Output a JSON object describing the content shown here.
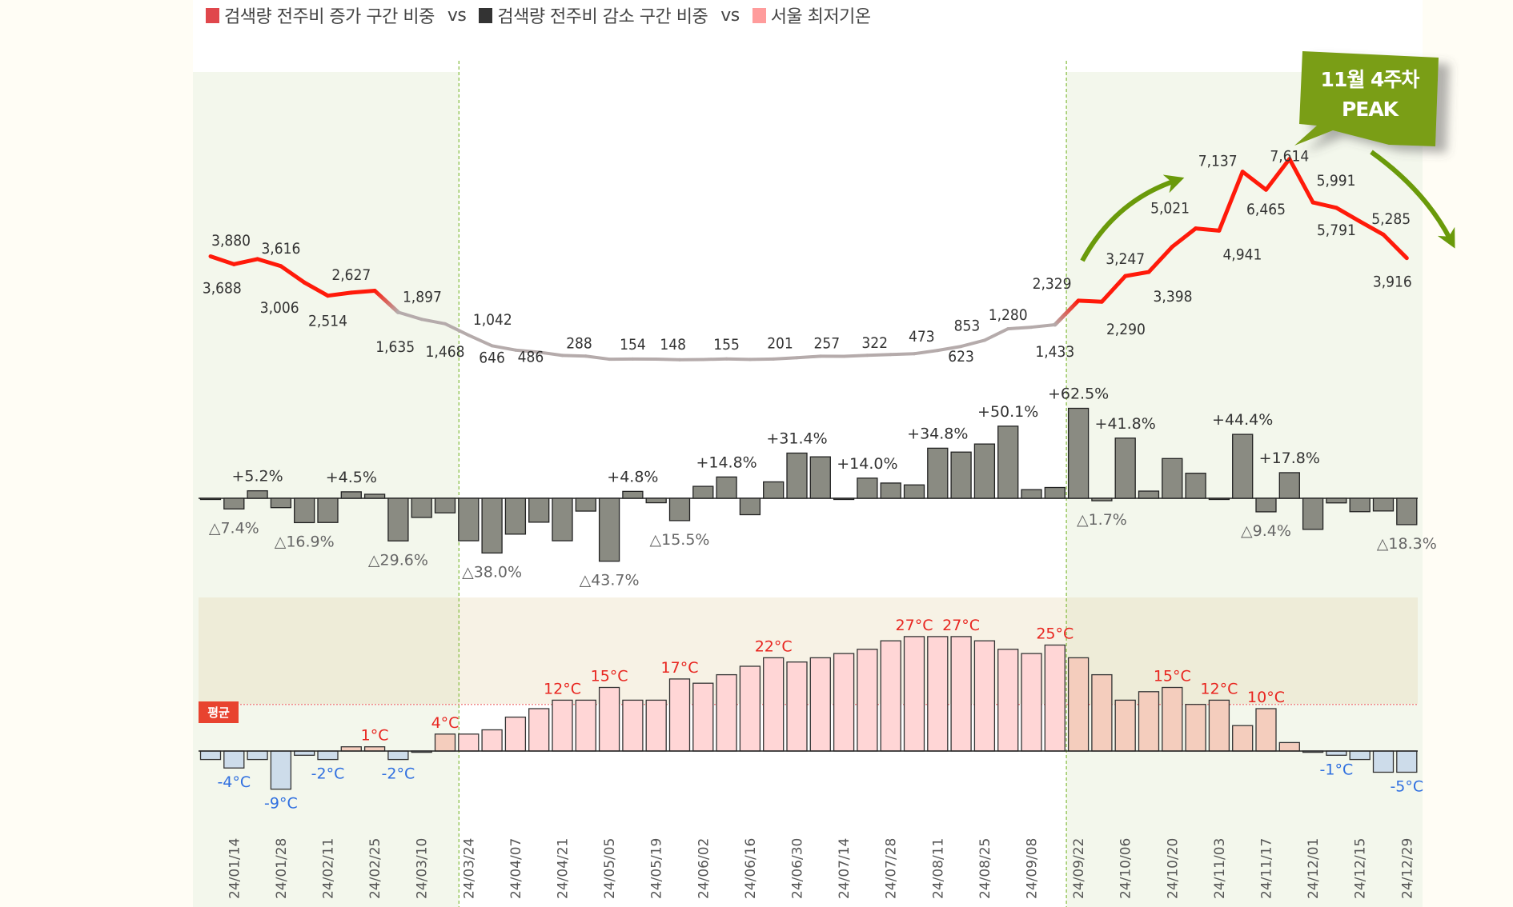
{
  "legend": {
    "separator": "vs",
    "items": [
      {
        "label": "검색량 전주비 증가 구간 비중",
        "color": "#e0474c"
      },
      {
        "label": "검색량 전주비 감소 구간 비중",
        "color": "#333333"
      },
      {
        "label": "서울 최저기온",
        "color": "#ff9c9c"
      }
    ]
  },
  "callout": {
    "line1": "11월 4주차",
    "line2": "PEAK",
    "color": "#7a9e14"
  },
  "average_badge": {
    "label": "평균",
    "color": "#e8432f"
  },
  "colors": {
    "increase_line": "#ff1a0a",
    "normal_line": "#b5abab",
    "wow_bar": "#8a8b82",
    "temp_positive": "#ffd6d6",
    "temp_negative": "#cddcea",
    "temp_label_positive": "#e8251f",
    "temp_label_negative": "#2f6fe0",
    "shaded_period": "#f3f7ec",
    "trend_arrow": "#6a9a0a"
  },
  "x_axis": {
    "tick_labels": [
      "24/01/14",
      "24/01/28",
      "24/02/11",
      "24/02/25",
      "24/03/10",
      "24/03/24",
      "24/04/07",
      "24/04/21",
      "24/05/05",
      "24/05/19",
      "24/06/02",
      "24/06/16",
      "24/06/30",
      "24/07/14",
      "24/07/28",
      "24/08/11",
      "24/08/25",
      "24/09/08",
      "24/09/22",
      "24/10/06",
      "24/10/20",
      "24/11/03",
      "24/11/17",
      "24/12/01",
      "24/12/15",
      "24/12/29"
    ],
    "shaded_periods": [
      {
        "end": "24/03/24"
      },
      {
        "start": "24/09/22"
      }
    ]
  },
  "chart_data": [
    {
      "type": "line",
      "values": [
        3983,
        3688,
        3880,
        3616,
        3006,
        2514,
        2627,
        2700,
        1897,
        1635,
        1468,
        1042,
        646,
        486,
        408,
        288,
        262,
        147,
        154,
        148,
        125,
        136,
        155,
        138,
        154,
        201,
        257,
        255,
        291,
        322,
        351,
        473,
        623,
        853,
        1280,
        1340,
        1433,
        2329,
        2290,
        3247,
        3398,
        4337,
        5021,
        4941,
        7137,
        6465,
        7614,
        5991,
        5791,
        5285,
        4793,
        3916
      ],
      "labels": [
        "",
        "3,688",
        "3,880",
        "3,616",
        "3,006",
        "2,514",
        "2,627",
        "",
        "1,897",
        "1,635",
        "1,468",
        "1,042",
        "646",
        "486",
        "",
        "288",
        "",
        "",
        "154",
        "148",
        "",
        "",
        "155",
        "",
        "",
        "201",
        "257",
        "",
        "",
        "322",
        "",
        "473",
        "623",
        "853",
        "1,280",
        "",
        "1,433",
        "2,329",
        "2,290",
        "3,247",
        "3,398",
        "",
        "5,021",
        "4,941",
        "7,137",
        "6,465",
        "7,614",
        "5,991",
        "5,791",
        "5,285",
        "",
        "3,916"
      ]
    },
    {
      "type": "bar",
      "values": [
        -0.5,
        -7.4,
        5.2,
        -6.5,
        -16.9,
        -16.8,
        4.5,
        2.8,
        -29.6,
        -13.3,
        -10.1,
        -29.5,
        -38.0,
        -24.9,
        -16.6,
        -29.5,
        -8.9,
        -43.7,
        4.8,
        -3.1,
        -15.5,
        8.3,
        14.8,
        -11.4,
        11.4,
        31.4,
        28.8,
        -0.6,
        14.0,
        10.6,
        9.3,
        34.8,
        32.1,
        37.7,
        50.1,
        6.0,
        7.5,
        62.5,
        -1.7,
        41.8,
        5.0,
        27.6,
        17.4,
        -0.5,
        44.4,
        -9.4,
        17.8,
        -21.6,
        -3.2,
        -9.3,
        -8.8,
        -18.3
      ],
      "labels": [
        "",
        "△7.4%",
        "+5.2%",
        "",
        "△16.9%",
        "",
        "+4.5%",
        "",
        "△29.6%",
        "",
        "",
        "",
        "△38.0%",
        "",
        "",
        "",
        "",
        "△43.7%",
        "+4.8%",
        "",
        "△15.5%",
        "",
        "+14.8%",
        "",
        "",
        "+31.4%",
        "",
        "",
        "+14.0%",
        "",
        "",
        "+34.8%",
        "",
        "",
        "+50.1%",
        "",
        "",
        "+62.5%",
        "△1.7%",
        "+41.8%",
        "",
        "",
        "",
        "",
        "+44.4%",
        "△9.4%",
        "+17.8%",
        "",
        "",
        "",
        "",
        "△18.3%"
      ]
    },
    {
      "type": "bar",
      "average": 11,
      "values": [
        -2,
        -4,
        -2,
        -9,
        -1,
        -2,
        1,
        1,
        -2,
        -0.3,
        4,
        4,
        5,
        8,
        10,
        12,
        12,
        15,
        12,
        12,
        17,
        16,
        18,
        20,
        22,
        21,
        22,
        23,
        24,
        26,
        27,
        27,
        27,
        26,
        24,
        23,
        25,
        22,
        18,
        12,
        14,
        15,
        11,
        12,
        6,
        10,
        2,
        -0.3,
        -1,
        -2,
        -5,
        -5
      ],
      "labels": [
        "",
        "-4°C",
        "",
        "-9°C",
        "",
        "-2°C",
        "",
        "1°C",
        "-2°C",
        "",
        "4°C",
        "",
        "",
        "",
        "",
        "12°C",
        "",
        "15°C",
        "",
        "",
        "17°C",
        "",
        "",
        "",
        "22°C",
        "",
        "",
        "",
        "",
        "",
        "27°C",
        "",
        "27°C",
        "",
        "",
        "",
        "25°C",
        "",
        "",
        "",
        "",
        "15°C",
        "",
        "12°C",
        "",
        "10°C",
        "",
        "",
        "-1°C",
        "",
        "",
        "-5°C"
      ]
    }
  ]
}
